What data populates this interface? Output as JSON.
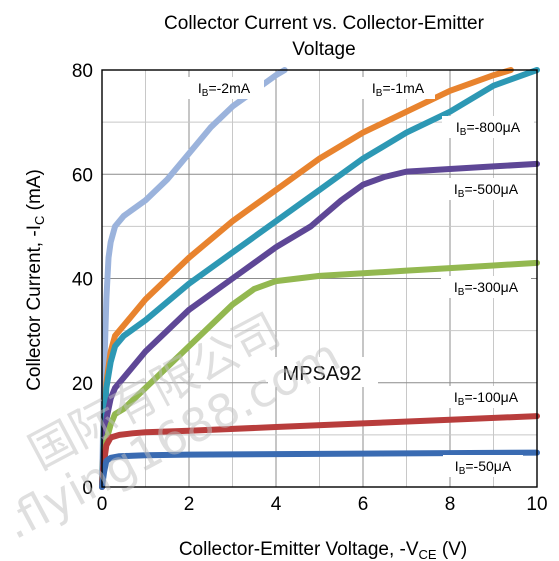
{
  "chart_data": {
    "type": "line",
    "title": "Collector Current vs. Collector-Emitter Voltage",
    "xlabel": "Collector-Emitter Voltage, -V",
    "xlabel_sub": "CE",
    "xlabel_unit": " (V)",
    "ylabel": "Collector Current, -I",
    "ylabel_sub": "C",
    "ylabel_unit": " (mA)",
    "xlim": [
      0,
      10
    ],
    "ylim": [
      0,
      80
    ],
    "x_ticks": [
      0,
      2,
      4,
      6,
      8,
      10
    ],
    "y_ticks": [
      0,
      20,
      40,
      60,
      80
    ],
    "grid": true,
    "annotation": "MPSA92",
    "watermark": "国际有限公司 .flying1688.com",
    "series": [
      {
        "name": "IB=-2mA",
        "label_main": "I",
        "label_sub": "B",
        "label_rest": "=-2mA",
        "color": "#9bb3dc",
        "x": [
          0,
          0.05,
          0.1,
          0.15,
          0.2,
          0.3,
          0.5,
          1.0,
          1.5,
          2.0,
          2.5,
          3.0,
          3.5,
          4.0,
          4.2
        ],
        "y": [
          0,
          22,
          36,
          44,
          47,
          50,
          52,
          55,
          59,
          64,
          69,
          73,
          76,
          79,
          80
        ]
      },
      {
        "name": "IB=-1mA",
        "label_main": "I",
        "label_sub": "B",
        "label_rest": "=-1mA",
        "color": "#e8832e",
        "x": [
          0,
          0.05,
          0.1,
          0.2,
          0.3,
          0.5,
          1.0,
          2.0,
          3.0,
          4.0,
          5.0,
          6.0,
          7.0,
          8.0,
          9.0,
          9.4
        ],
        "y": [
          0,
          12,
          20,
          26,
          29,
          31,
          36,
          44,
          51,
          57,
          63,
          68,
          72,
          76,
          79,
          80
        ]
      },
      {
        "name": "IB=-800μA",
        "label_main": "I",
        "label_sub": "B",
        "label_rest": "=-800μA",
        "color": "#2d98b4",
        "x": [
          0,
          0.05,
          0.1,
          0.2,
          0.3,
          0.5,
          1.0,
          2.0,
          3.0,
          4.0,
          5.0,
          6.0,
          7.0,
          8.0,
          9.0,
          10.0
        ],
        "y": [
          0,
          12,
          19,
          24,
          27,
          29,
          32,
          39,
          45,
          51,
          57,
          63,
          68,
          72,
          77,
          80
        ]
      },
      {
        "name": "IB=-500μA",
        "label_main": "I",
        "label_sub": "B",
        "label_rest": "=-500μA",
        "color": "#5e4796",
        "x": [
          0,
          0.05,
          0.1,
          0.2,
          0.3,
          0.5,
          1.0,
          2.0,
          3.0,
          4.0,
          4.8,
          5.5,
          6.0,
          6.5,
          7.0,
          8.0,
          9.0,
          10.0
        ],
        "y": [
          0,
          8,
          13,
          17,
          19,
          21,
          26,
          34,
          40,
          46,
          50,
          55,
          58,
          59.5,
          60.5,
          61,
          61.5,
          62
        ]
      },
      {
        "name": "IB=-300μA",
        "label_main": "I",
        "label_sub": "B",
        "label_rest": "=-300μA",
        "color": "#93b850",
        "x": [
          0,
          0.05,
          0.1,
          0.2,
          0.3,
          0.5,
          1.0,
          2.0,
          2.5,
          3.0,
          3.5,
          4.0,
          5.0,
          6.0,
          7.0,
          8.0,
          9.0,
          10.0
        ],
        "y": [
          0,
          5,
          9,
          12,
          14,
          15,
          19,
          27,
          31,
          35,
          38,
          39.5,
          40.5,
          41,
          41.5,
          42,
          42.5,
          43
        ]
      },
      {
        "name": "IB=-100μA",
        "label_main": "I",
        "label_sub": "B",
        "label_rest": "=-100μA",
        "color": "#b83d3c",
        "x": [
          0,
          0.05,
          0.1,
          0.2,
          0.4,
          0.7,
          1.0,
          2.0,
          4.0,
          6.0,
          8.0,
          10.0
        ],
        "y": [
          0,
          5,
          8,
          9.5,
          10,
          10.3,
          10.5,
          10.8,
          11.5,
          12.2,
          12.9,
          13.6
        ]
      },
      {
        "name": "IB=-50μA",
        "label_main": "I",
        "label_sub": "B",
        "label_rest": "=-50μA",
        "color": "#3a6bb2",
        "x": [
          0,
          0.05,
          0.1,
          0.2,
          0.4,
          0.7,
          1.0,
          2.0,
          4.0,
          6.0,
          8.0,
          10.0
        ],
        "y": [
          0,
          3,
          5,
          5.6,
          5.9,
          6.0,
          6.1,
          6.2,
          6.3,
          6.4,
          6.5,
          6.6
        ]
      }
    ]
  }
}
